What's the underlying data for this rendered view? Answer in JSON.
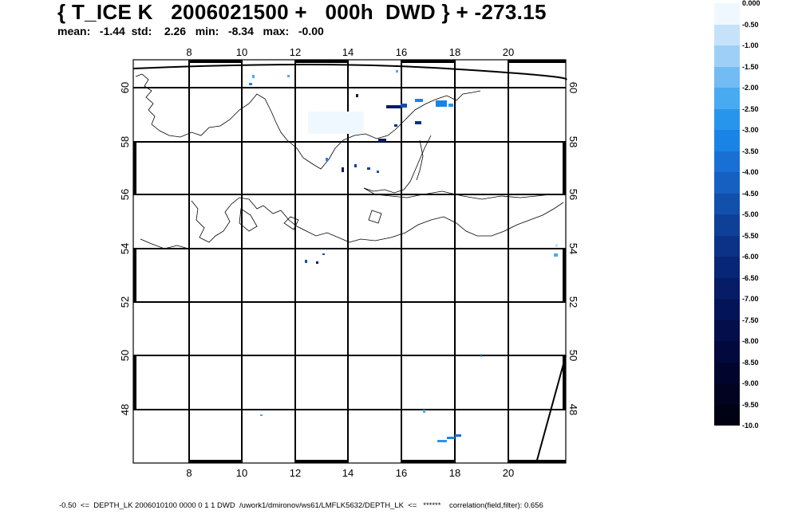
{
  "header": {
    "title": "{ T_ICE K   2006021500 +   000h  DWD } + -273.15",
    "stats": "mean:   -1.44  std:    2.26   min:   -8.34   max:   -0.00"
  },
  "map": {
    "lon_ticks": [
      "8",
      "10",
      "12",
      "14",
      "16",
      "18",
      "20"
    ],
    "lat_ticks": [
      "60",
      "58",
      "56",
      "54",
      "52",
      "50",
      "48"
    ]
  },
  "colorbar": {
    "labels": [
      "0.000",
      "-0.50",
      "-1.00",
      "-1.50",
      "-2.00",
      "-2.50",
      "-3.00",
      "-3.50",
      "-4.00",
      "-4.50",
      "-5.00",
      "-5.50",
      "-6.00",
      "-6.50",
      "-7.00",
      "-7.50",
      "-8.00",
      "-8.50",
      "-9.00",
      "-9.50",
      "-10.0"
    ],
    "colors": [
      "#f0f8ff",
      "#c6e2fa",
      "#9ed0f7",
      "#72bcf3",
      "#48aaf0",
      "#2895ec",
      "#1a84e6",
      "#1870d4",
      "#1560c0",
      "#1250ac",
      "#0e4098",
      "#0b3286",
      "#082676",
      "#061c66",
      "#041458",
      "#030e4a",
      "#02093c",
      "#01052e",
      "#010320",
      "#000114"
    ]
  },
  "footer": "-0.50  <=  DEPTH_LK 2006010100 0000 0 1 1 DWD  /uwork1/dmironov/ws61/LMFLK5632/DEPTH_LK  <=   ******    correlation(field,filter): 0.656"
}
